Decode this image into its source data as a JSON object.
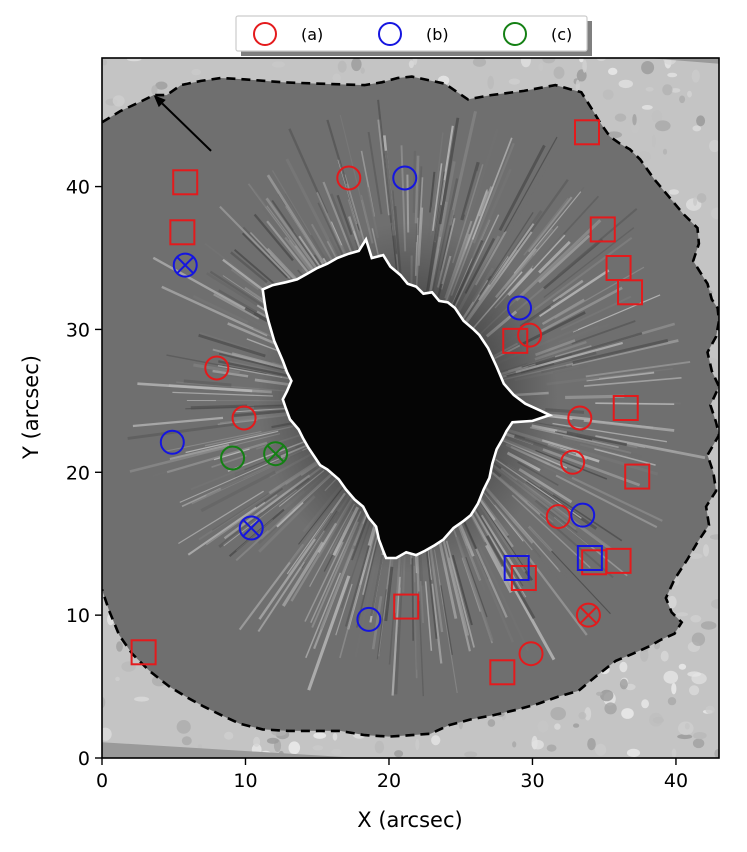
{
  "chart_data": {
    "type": "scatter",
    "title": "",
    "xlabel": "X (arcsec)",
    "ylabel": "Y (arcsec)",
    "xlim": [
      0,
      43
    ],
    "ylim": [
      0,
      49
    ],
    "xticks": [
      0,
      10,
      20,
      30,
      40
    ],
    "yticks": [
      0,
      10,
      20,
      30,
      40
    ],
    "background": "grayscale solar sunspot image (umbra and penumbra, granulation)",
    "legend": {
      "placement": "top-center, above axes",
      "entries": [
        {
          "label": "(a)",
          "color": "#e41a1c"
        },
        {
          "label": "(b)",
          "color": "#1515e0"
        },
        {
          "label": "(c)",
          "color": "#148014"
        }
      ]
    },
    "series": [
      {
        "name": "(a)",
        "color": "#e41a1c",
        "circles": [
          [
            17.2,
            40.6
          ],
          [
            8.0,
            27.3
          ],
          [
            9.9,
            23.8
          ],
          [
            29.8,
            29.6
          ],
          [
            33.3,
            23.8
          ],
          [
            32.8,
            20.7
          ],
          [
            31.8,
            16.9
          ],
          [
            29.9,
            7.3
          ]
        ],
        "crossed_circles": [
          [
            33.9,
            10.0
          ]
        ],
        "squares": [
          [
            5.8,
            40.3
          ],
          [
            5.6,
            36.8
          ],
          [
            33.8,
            43.8
          ],
          [
            34.9,
            37.0
          ],
          [
            36.0,
            34.3
          ],
          [
            36.8,
            32.6
          ],
          [
            28.8,
            29.2
          ],
          [
            36.5,
            24.5
          ],
          [
            37.3,
            19.7
          ],
          [
            36.0,
            13.8
          ],
          [
            34.3,
            13.7
          ],
          [
            29.4,
            12.6
          ],
          [
            21.2,
            10.6
          ],
          [
            2.9,
            7.4
          ],
          [
            27.9,
            6.0
          ]
        ]
      },
      {
        "name": "(b)",
        "color": "#1515e0",
        "circles": [
          [
            21.1,
            40.6
          ],
          [
            29.1,
            31.5
          ],
          [
            4.9,
            22.1
          ],
          [
            33.5,
            17.0
          ],
          [
            18.6,
            9.7
          ]
        ],
        "crossed_circles": [
          [
            5.8,
            34.5
          ],
          [
            10.4,
            16.1
          ]
        ],
        "squares": [
          [
            28.9,
            13.3
          ],
          [
            34.0,
            14.0
          ]
        ]
      },
      {
        "name": "(c)",
        "color": "#148014",
        "circles": [
          [
            9.1,
            21.0
          ]
        ],
        "crossed_circles": [
          [
            12.1,
            21.3
          ]
        ],
        "squares": []
      }
    ],
    "arrow": {
      "from": [
        7.6,
        42.5
      ],
      "to": [
        3.6,
        46.4
      ]
    },
    "contours": [
      {
        "name": "umbra boundary",
        "color": "#ffffff",
        "style": "solid",
        "points": [
          [
            17.2,
            35.3
          ],
          [
            17.9,
            35.5
          ],
          [
            18.4,
            36.3
          ],
          [
            18.8,
            35.0
          ],
          [
            19.6,
            35.2
          ],
          [
            20.1,
            34.4
          ],
          [
            20.8,
            33.8
          ],
          [
            21.3,
            33.2
          ],
          [
            21.9,
            33.0
          ],
          [
            22.4,
            32.5
          ],
          [
            23.0,
            32.6
          ],
          [
            23.5,
            32.0
          ],
          [
            24.1,
            31.9
          ],
          [
            24.6,
            31.5
          ],
          [
            25.2,
            30.6
          ],
          [
            25.9,
            30.0
          ],
          [
            26.3,
            29.6
          ],
          [
            26.9,
            28.7
          ],
          [
            27.5,
            27.4
          ],
          [
            28.0,
            26.2
          ],
          [
            28.7,
            25.4
          ],
          [
            29.5,
            24.8
          ],
          [
            30.6,
            24.3
          ],
          [
            31.2,
            24.0
          ],
          [
            30.0,
            23.6
          ],
          [
            28.6,
            23.5
          ],
          [
            28.2,
            22.9
          ],
          [
            27.9,
            22.3
          ],
          [
            27.5,
            21.6
          ],
          [
            27.2,
            20.6
          ],
          [
            27.0,
            19.6
          ],
          [
            26.6,
            18.8
          ],
          [
            26.2,
            17.8
          ],
          [
            25.7,
            17.0
          ],
          [
            25.2,
            16.6
          ],
          [
            24.5,
            16.1
          ],
          [
            23.8,
            15.3
          ],
          [
            23.2,
            14.9
          ],
          [
            22.5,
            14.5
          ],
          [
            21.9,
            14.2
          ],
          [
            21.2,
            14.4
          ],
          [
            20.5,
            14.0
          ],
          [
            19.8,
            14.0
          ],
          [
            19.6,
            14.5
          ],
          [
            19.3,
            15.3
          ],
          [
            19.1,
            16.2
          ],
          [
            18.6,
            16.8
          ],
          [
            18.2,
            17.6
          ],
          [
            17.6,
            18.1
          ],
          [
            17.0,
            18.8
          ],
          [
            16.5,
            19.5
          ],
          [
            15.7,
            20.2
          ],
          [
            15.2,
            20.5
          ],
          [
            14.8,
            21.1
          ],
          [
            14.4,
            21.7
          ],
          [
            14.0,
            22.4
          ],
          [
            13.7,
            23.0
          ],
          [
            13.1,
            23.7
          ],
          [
            12.8,
            24.5
          ],
          [
            12.6,
            25.1
          ],
          [
            12.9,
            25.7
          ],
          [
            13.2,
            26.4
          ],
          [
            12.9,
            27.0
          ],
          [
            12.6,
            27.8
          ],
          [
            12.3,
            28.5
          ],
          [
            12.0,
            29.2
          ],
          [
            11.8,
            29.9
          ],
          [
            11.6,
            30.6
          ],
          [
            11.4,
            31.4
          ],
          [
            11.3,
            32.1
          ],
          [
            11.2,
            32.8
          ],
          [
            11.9,
            33.1
          ],
          [
            12.8,
            33.3
          ],
          [
            13.6,
            33.5
          ],
          [
            14.3,
            33.9
          ],
          [
            15.0,
            34.3
          ],
          [
            15.7,
            34.6
          ],
          [
            16.4,
            35.0
          ],
          [
            17.2,
            35.3
          ]
        ]
      },
      {
        "name": "penumbra boundary",
        "color": "#000000",
        "style": "dashed",
        "points": [
          [
            0.0,
            44.5
          ],
          [
            1.3,
            45.3
          ],
          [
            2.6,
            45.9
          ],
          [
            3.6,
            46.4
          ],
          [
            4.5,
            46.4
          ],
          [
            5.5,
            47.1
          ],
          [
            6.9,
            47.4
          ],
          [
            8.3,
            47.6
          ],
          [
            10.0,
            47.5
          ],
          [
            12.6,
            47.3
          ],
          [
            15.2,
            47.2
          ],
          [
            18.3,
            47.1
          ],
          [
            19.5,
            47.3
          ],
          [
            20.6,
            47.6
          ],
          [
            21.6,
            47.7
          ],
          [
            23.9,
            47.2
          ],
          [
            25.5,
            46.1
          ],
          [
            27.1,
            46.4
          ],
          [
            29.4,
            46.7
          ],
          [
            31.6,
            47.1
          ],
          [
            33.4,
            46.6
          ],
          [
            34.1,
            45.5
          ],
          [
            34.7,
            44.5
          ],
          [
            35.4,
            43.5
          ],
          [
            36.1,
            43.0
          ],
          [
            36.8,
            42.6
          ],
          [
            37.5,
            41.9
          ],
          [
            38.5,
            40.5
          ],
          [
            39.5,
            39.3
          ],
          [
            40.5,
            38.1
          ],
          [
            41.5,
            37.1
          ],
          [
            41.6,
            36.0
          ],
          [
            41.2,
            34.8
          ],
          [
            41.7,
            34.0
          ],
          [
            42.2,
            33.2
          ],
          [
            42.5,
            32.1
          ],
          [
            42.9,
            31.5
          ],
          [
            43.0,
            30.6
          ],
          [
            42.8,
            29.5
          ],
          [
            42.2,
            28.4
          ],
          [
            42.5,
            27.1
          ],
          [
            43.0,
            26.0
          ],
          [
            42.4,
            24.7
          ],
          [
            42.8,
            23.5
          ],
          [
            43.0,
            22.6
          ],
          [
            42.2,
            21.2
          ],
          [
            42.6,
            20.0
          ],
          [
            42.8,
            18.7
          ],
          [
            42.1,
            17.6
          ],
          [
            42.3,
            16.3
          ],
          [
            41.5,
            15.1
          ],
          [
            40.8,
            13.9
          ],
          [
            39.9,
            12.5
          ],
          [
            39.3,
            11.2
          ],
          [
            39.7,
            10.2
          ],
          [
            40.4,
            9.5
          ],
          [
            39.9,
            8.7
          ],
          [
            39.0,
            8.3
          ],
          [
            38.1,
            7.8
          ],
          [
            37.0,
            7.3
          ],
          [
            35.8,
            6.8
          ],
          [
            34.4,
            5.7
          ],
          [
            33.2,
            4.7
          ],
          [
            31.8,
            4.3
          ],
          [
            30.4,
            3.8
          ],
          [
            29.0,
            3.4
          ],
          [
            27.3,
            3.0
          ],
          [
            25.7,
            2.7
          ],
          [
            24.2,
            2.3
          ],
          [
            22.9,
            1.7
          ],
          [
            21.6,
            1.6
          ],
          [
            20.0,
            1.5
          ],
          [
            18.3,
            1.6
          ],
          [
            16.6,
            1.9
          ],
          [
            14.8,
            1.9
          ],
          [
            13.0,
            1.9
          ],
          [
            11.2,
            2.0
          ],
          [
            9.6,
            2.4
          ],
          [
            8.3,
            3.0
          ],
          [
            7.1,
            3.6
          ],
          [
            6.0,
            4.2
          ],
          [
            4.7,
            5.0
          ],
          [
            3.3,
            6.1
          ],
          [
            2.1,
            7.3
          ],
          [
            1.2,
            8.6
          ],
          [
            0.5,
            10.3
          ],
          [
            0.1,
            11.5
          ],
          [
            0.0,
            11.8
          ]
        ]
      }
    ]
  }
}
